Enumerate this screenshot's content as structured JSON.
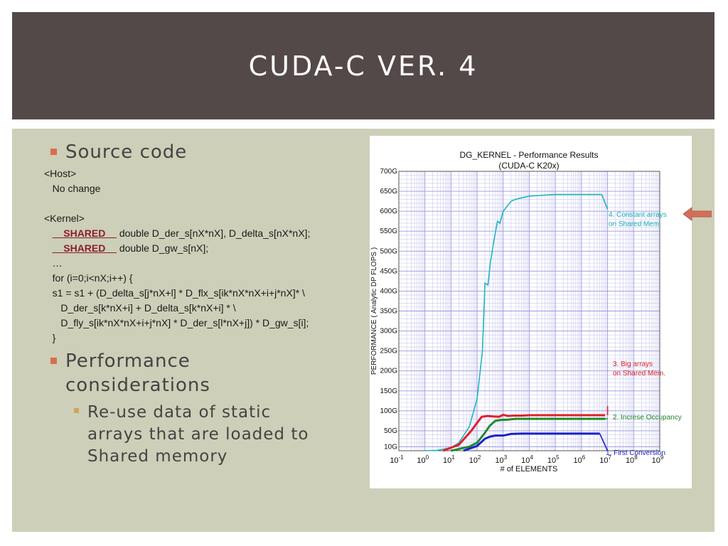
{
  "slide": {
    "title": "CUDA-C VER. 4",
    "source_heading": "Source code",
    "code_lines": [
      {
        "pre": "<Host>"
      },
      {
        "pre": "   No change"
      },
      {
        "pre": ""
      },
      {
        "pre": "<Kernel>"
      },
      {
        "pre": "   ",
        "shared": "__SHARED__",
        "post": " double D_der_s[nX*nX], D_delta_s[nX*nX];"
      },
      {
        "pre": "   ",
        "shared": "__SHARED__",
        "post": " double D_gw_s[nX];"
      },
      {
        "pre": "   …"
      },
      {
        "pre": "   for (i=0;i<nX;i++) {"
      },
      {
        "pre": "   s1 = s1 + (D_delta_s[j*nX+l] * D_flx_s[ik*nX*nX+i+j*nX]* \\"
      },
      {
        "pre": "      D_der_s[k*nX+i] + D_delta_s[k*nX+i] * \\"
      },
      {
        "pre": "      D_fly_s[ik*nX*nX+i+j*nX] * D_der_s[l*nX+j]) * D_gw_s[i];"
      },
      {
        "pre": "   }"
      }
    ],
    "perf_heading_1": "Performance",
    "perf_heading_2": "considerations",
    "sub_1": "Re-use data of static",
    "sub_2": "arrays that are loaded to",
    "sub_3": "Shared memory"
  },
  "colors": {
    "title_bg": "#534948",
    "content_bg": "#cdcfb8",
    "bullet": "#d86e50",
    "sub_bullet": "#d2a35e",
    "arrow": "#d27057"
  },
  "chart_data": {
    "type": "line",
    "title": "DG_KERNEL - Performance Results",
    "subtitle": "(CUDA-C K20x)",
    "xlabel": "# of ELEMENTS",
    "ylabel": "PERFORMANCE ( Analytic DP FLOPS )",
    "x_scale": "log",
    "xlim": [
      0.1,
      1000000000
    ],
    "ylim": [
      0,
      700
    ],
    "grid": true,
    "x_ticks": [
      {
        "v": 0.1,
        "base": "10",
        "exp": "-1"
      },
      {
        "v": 1,
        "base": "10",
        "exp": "0"
      },
      {
        "v": 10,
        "base": "10",
        "exp": "1"
      },
      {
        "v": 100,
        "base": "10",
        "exp": "2"
      },
      {
        "v": 1000,
        "base": "10",
        "exp": "3"
      },
      {
        "v": 10000,
        "base": "10",
        "exp": "4"
      },
      {
        "v": 100000,
        "base": "10",
        "exp": "5"
      },
      {
        "v": 1000000,
        "base": "10",
        "exp": "6"
      },
      {
        "v": 10000000,
        "base": "10",
        "exp": "7"
      },
      {
        "v": 100000000,
        "base": "10",
        "exp": "8"
      },
      {
        "v": 1000000000,
        "base": "10",
        "exp": "9"
      }
    ],
    "y_ticks": [
      {
        "v": 10,
        "label": "10G"
      },
      {
        "v": 50,
        "label": "50G"
      },
      {
        "v": 100,
        "label": "100G"
      },
      {
        "v": 150,
        "label": "150G"
      },
      {
        "v": 200,
        "label": "200G"
      },
      {
        "v": 250,
        "label": "250G"
      },
      {
        "v": 300,
        "label": "300G"
      },
      {
        "v": 350,
        "label": "350G"
      },
      {
        "v": 400,
        "label": "400G"
      },
      {
        "v": 450,
        "label": "450G"
      },
      {
        "v": 500,
        "label": "500G"
      },
      {
        "v": 550,
        "label": "550G"
      },
      {
        "v": 600,
        "label": "600G"
      },
      {
        "v": 650,
        "label": "650G"
      },
      {
        "v": 700,
        "label": "700G"
      }
    ],
    "series": [
      {
        "color": "#1fb5bd",
        "annotation": [
          "4. Constant arrays",
          "on Shared Mem"
        ],
        "points": [
          [
            1,
            0
          ],
          [
            3,
            1
          ],
          [
            10,
            8
          ],
          [
            20,
            20
          ],
          [
            50,
            60
          ],
          [
            100,
            130
          ],
          [
            160,
            250
          ],
          [
            200,
            420
          ],
          [
            260,
            415
          ],
          [
            320,
            470
          ],
          [
            450,
            530
          ],
          [
            600,
            575
          ],
          [
            750,
            570
          ],
          [
            1000,
            600
          ],
          [
            2000,
            625
          ],
          [
            3000,
            630
          ],
          [
            10000,
            638
          ],
          [
            100000,
            642
          ],
          [
            1000000,
            642
          ],
          [
            6000000,
            642
          ]
        ],
        "tail": [
          [
            6000000,
            642
          ],
          [
            10000000,
            605
          ]
        ]
      },
      {
        "color": "#e0202a",
        "annotation": [
          "3. Big arrays",
          "on Shared Mem."
        ],
        "points": [
          [
            5,
            0
          ],
          [
            20,
            15
          ],
          [
            60,
            50
          ],
          [
            100,
            70
          ],
          [
            150,
            85
          ],
          [
            250,
            87
          ],
          [
            400,
            86
          ],
          [
            700,
            85
          ],
          [
            1000,
            90
          ],
          [
            1500,
            87
          ],
          [
            2500,
            88
          ],
          [
            5000,
            88
          ],
          [
            10000,
            89
          ],
          [
            100000,
            89
          ],
          [
            1000000,
            89
          ],
          [
            8000000,
            89
          ]
        ],
        "tail": [
          [
            10000000,
            89
          ],
          [
            10000000,
            112
          ]
        ]
      },
      {
        "color": "#1d8a2e",
        "annotation": [
          "2. Increse Occupancy"
        ],
        "points": [
          [
            10,
            0
          ],
          [
            50,
            10
          ],
          [
            100,
            20
          ],
          [
            200,
            45
          ],
          [
            300,
            62
          ],
          [
            500,
            75
          ],
          [
            800,
            77
          ],
          [
            1500,
            78
          ],
          [
            3000,
            80
          ],
          [
            10000,
            80
          ],
          [
            100000,
            80
          ],
          [
            1000000,
            80
          ],
          [
            8000000,
            80
          ]
        ],
        "tail": [
          [
            8000000,
            80
          ],
          [
            10000000,
            80
          ]
        ]
      },
      {
        "color": "#1a22c9",
        "annotation": [
          "1. First Conversion"
        ],
        "points": [
          [
            30,
            0
          ],
          [
            100,
            12
          ],
          [
            200,
            30
          ],
          [
            300,
            35
          ],
          [
            500,
            38
          ],
          [
            1000,
            38
          ],
          [
            2000,
            42
          ],
          [
            5000,
            43
          ],
          [
            10000,
            43
          ],
          [
            100000,
            43
          ],
          [
            1000000,
            43
          ],
          [
            5000000,
            43
          ]
        ],
        "tail": [
          [
            5000000,
            43
          ],
          [
            10000000,
            0
          ]
        ]
      }
    ]
  }
}
